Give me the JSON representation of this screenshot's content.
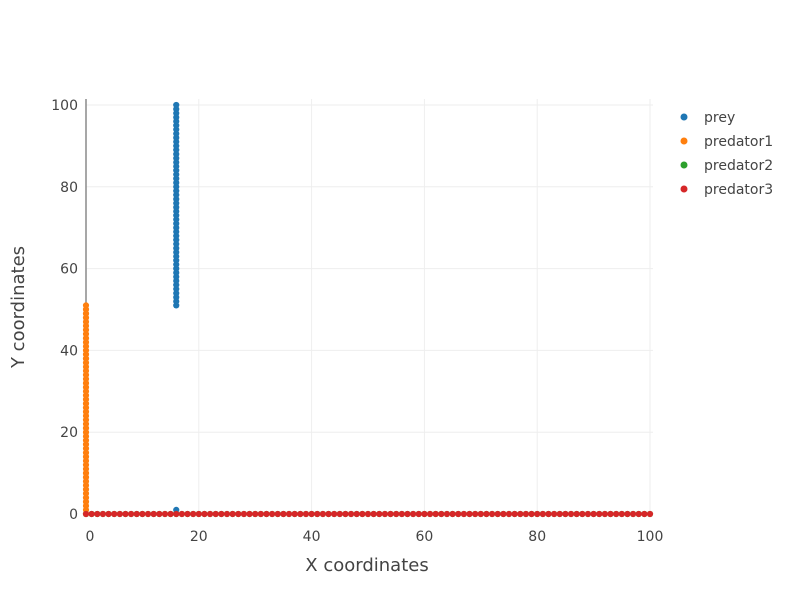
{
  "chart_data": {
    "type": "scatter",
    "title": "",
    "xlabel": "X coordinates",
    "ylabel": "Y coordinates",
    "xlim": [
      0,
      100
    ],
    "ylim": [
      0,
      100
    ],
    "xticks": [
      0,
      20,
      40,
      60,
      80,
      100
    ],
    "yticks": [
      0,
      20,
      40,
      60,
      80,
      100
    ],
    "grid": true,
    "legend_position": "top-right",
    "series": [
      {
        "name": "prey",
        "color": "#1f77b4",
        "segments": [
          {
            "x": [
              16,
              16
            ],
            "y": [
              51,
              100
            ],
            "step": 1
          }
        ],
        "points": [
          {
            "x": 16,
            "y": 1
          }
        ]
      },
      {
        "name": "predator1",
        "color": "#ff7f0e",
        "segments": [
          {
            "x": [
              0,
              0
            ],
            "y": [
              0,
              51
            ],
            "step": 1
          }
        ],
        "points": []
      },
      {
        "name": "predator2",
        "color": "#2ca02c",
        "segments": [
          {
            "x": [
              0,
              100
            ],
            "y": [
              0,
              0
            ],
            "step": 1
          }
        ],
        "points": []
      },
      {
        "name": "predator3",
        "color": "#d62728",
        "segments": [
          {
            "x": [
              0,
              100
            ],
            "y": [
              0,
              0
            ],
            "step": 1
          }
        ],
        "points": []
      }
    ]
  }
}
